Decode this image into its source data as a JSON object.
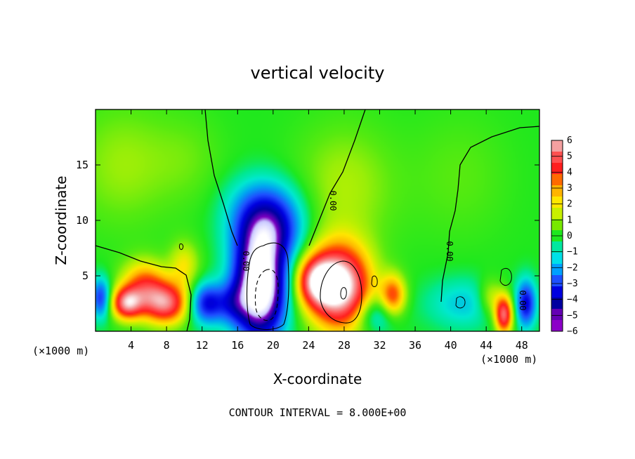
{
  "chart_data": {
    "type": "heatmap",
    "title": "vertical velocity",
    "xlabel": "X-coordinate",
    "ylabel": "Z-coordinate",
    "x_unit_note_left": "(×1000 m)",
    "x_unit_note_right": "(×1000 m)",
    "xlim": [
      0,
      50
    ],
    "ylim": [
      0,
      20
    ],
    "x_ticks": [
      4,
      8,
      12,
      16,
      20,
      24,
      28,
      32,
      36,
      40,
      44,
      48
    ],
    "y_ticks": [
      5,
      10,
      15
    ],
    "colorbar": {
      "ticks": [
        6,
        5,
        4,
        3,
        2,
        1,
        0,
        -1,
        -2,
        -3,
        -4,
        -5,
        -6
      ],
      "tick_labels": [
        "6",
        "5",
        "4",
        "3",
        "2",
        "1",
        "0",
        "−1",
        "−2",
        "−3",
        "−4",
        "−5",
        "−6"
      ],
      "colors": [
        "#f4a0a0",
        "#ff5050",
        "#ff1e1e",
        "#ff6a00",
        "#ffb400",
        "#ffe600",
        "#c8f000",
        "#78e800",
        "#1ee81e",
        "#00e8a0",
        "#00e0e8",
        "#00a0ff",
        "#1e50ff",
        "#0000e0",
        "#0000a0",
        "#6400b4",
        "#8c00c8"
      ]
    },
    "contour_label": "0.00",
    "features": [
      {
        "x": 18.5,
        "z": 4.0,
        "w": -9.0,
        "sx": 2.0,
        "sz": 3.2
      },
      {
        "x": 19.5,
        "z": 9.0,
        "w": -4.0,
        "sx": 2.6,
        "sz": 2.0
      },
      {
        "x": 19.0,
        "z": 11.5,
        "w": -2.0,
        "sx": 3.0,
        "sz": 2.0
      },
      {
        "x": 27.5,
        "z": 4.0,
        "w": 8.0,
        "sx": 2.4,
        "sz": 2.6
      },
      {
        "x": 25.0,
        "z": 4.5,
        "w": 5.0,
        "sx": 1.6,
        "sz": 1.5
      },
      {
        "x": 8.0,
        "z": 2.5,
        "w": 5.5,
        "sx": 1.8,
        "sz": 1.3
      },
      {
        "x": 5.5,
        "z": 4.0,
        "w": 4.0,
        "sx": 1.8,
        "sz": 1.6
      },
      {
        "x": 3.5,
        "z": 2.5,
        "w": 5.5,
        "sx": 1.2,
        "sz": 1.0
      },
      {
        "x": 12.5,
        "z": 2.5,
        "w": -4.0,
        "sx": 1.4,
        "sz": 1.3
      },
      {
        "x": 15.5,
        "z": 2.5,
        "w": -2.0,
        "sx": 1.3,
        "sz": 1.3
      },
      {
        "x": 10.0,
        "z": 6.0,
        "w": 2.0,
        "sx": 1.2,
        "sz": 1.5
      },
      {
        "x": 33.5,
        "z": 3.2,
        "w": 4.0,
        "sx": 1.0,
        "sz": 1.3
      },
      {
        "x": 31.5,
        "z": 1.5,
        "w": -2.0,
        "sx": 1.6,
        "sz": 1.2
      },
      {
        "x": 41.5,
        "z": 2.5,
        "w": -1.6,
        "sx": 3.0,
        "sz": 1.6
      },
      {
        "x": 46.0,
        "z": 1.5,
        "w": 6.0,
        "sx": 0.7,
        "sz": 1.2
      },
      {
        "x": 48.5,
        "z": 2.5,
        "w": -4.0,
        "sx": 0.8,
        "sz": 1.5
      },
      {
        "x": 0.6,
        "z": 3.0,
        "w": -3.5,
        "sx": 0.8,
        "sz": 1.3
      },
      {
        "x": 44.5,
        "z": 3.0,
        "w": 2.0,
        "sx": 1.0,
        "sz": 1.2
      },
      {
        "x": 3.0,
        "z": 15.0,
        "w": 1.1,
        "sx": 4.0,
        "sz": 4.0
      },
      {
        "x": 28.0,
        "z": 13.0,
        "w": 1.3,
        "sx": 4.0,
        "sz": 4.0
      },
      {
        "x": 41.0,
        "z": 14.0,
        "w": 0.6,
        "sx": 4.0,
        "sz": 4.0
      },
      {
        "x": 10.5,
        "z": 15.5,
        "w": 0.6,
        "sx": 3.0,
        "sz": 3.0
      }
    ]
  },
  "footer": {
    "contour_interval": "CONTOUR INTERVAL = 8.000E+00"
  }
}
